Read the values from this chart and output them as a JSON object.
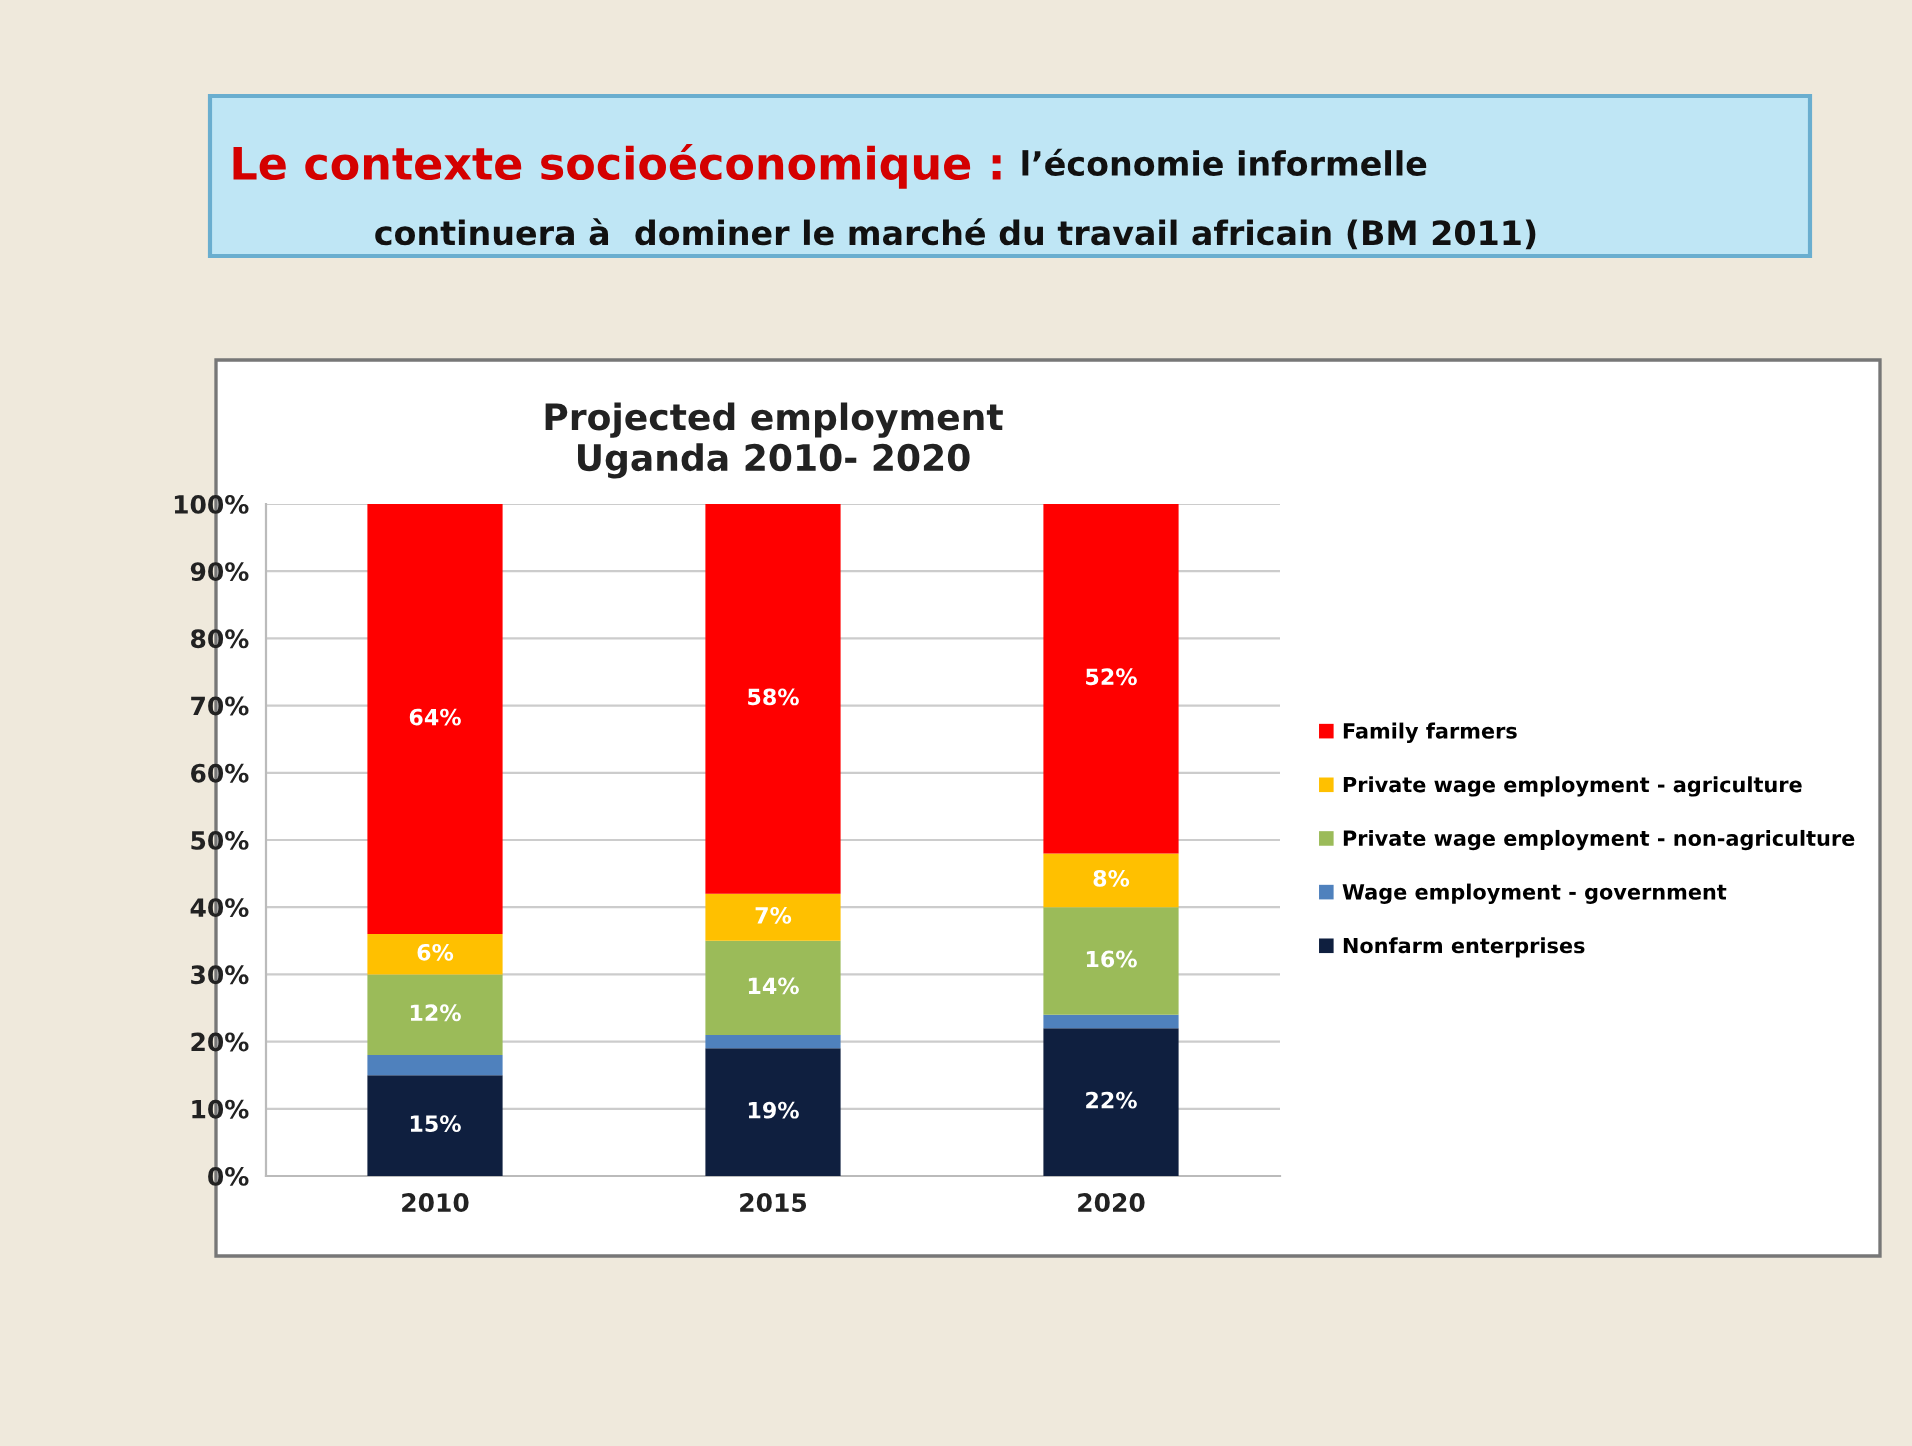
{
  "chart_data": {
    "type": "bar",
    "stacked": true,
    "title": "Projected employment\nUganda 2010- 2020",
    "annotations": [
      "Le contexte socioéconomique :",
      "l’économie informelle\ncontinuera à  dominer le marché du travail africain (BM 2011)"
    ],
    "categories": [
      "2010",
      "2015",
      "2020"
    ],
    "series": [
      {
        "name": "Nonfarm enterprises",
        "color": "#0f1f3f",
        "values": [
          15,
          19,
          22
        ],
        "value_labels": [
          "15%",
          "19%",
          "22%"
        ]
      },
      {
        "name": "Wage employment - government",
        "color": "#4f81bd",
        "values": [
          3,
          2,
          2
        ],
        "value_labels": [
          null,
          null,
          null
        ]
      },
      {
        "name": "Private wage employment - non-agriculture",
        "color": "#9bbb59",
        "values": [
          12,
          14,
          16
        ],
        "value_labels": [
          "12%",
          "14%",
          "16%"
        ]
      },
      {
        "name": "Private wage employment - agriculture",
        "color": "#ffc000",
        "values": [
          6,
          7,
          8
        ],
        "value_labels": [
          "6%",
          "7%",
          "8%"
        ]
      },
      {
        "name": "Family farmers",
        "color": "#ff0000",
        "values": [
          64,
          58,
          52
        ],
        "value_labels": [
          "64%",
          "58%",
          "52%"
        ]
      }
    ],
    "ylim": [
      0,
      100
    ],
    "yticks": [
      {
        "value": 0,
        "label": "0%"
      },
      {
        "value": 10,
        "label": "10%"
      },
      {
        "value": 20,
        "label": "20%"
      },
      {
        "value": 30,
        "label": "30%"
      },
      {
        "value": 40,
        "label": "40%"
      },
      {
        "value": 50,
        "label": "50%"
      },
      {
        "value": 60,
        "label": "60%"
      },
      {
        "value": 70,
        "label": "70%"
      },
      {
        "value": 80,
        "label": "80%"
      },
      {
        "value": 90,
        "label": "90%"
      },
      {
        "value": 100,
        "label": "100%"
      }
    ],
    "grid": "y",
    "legend": "right"
  }
}
